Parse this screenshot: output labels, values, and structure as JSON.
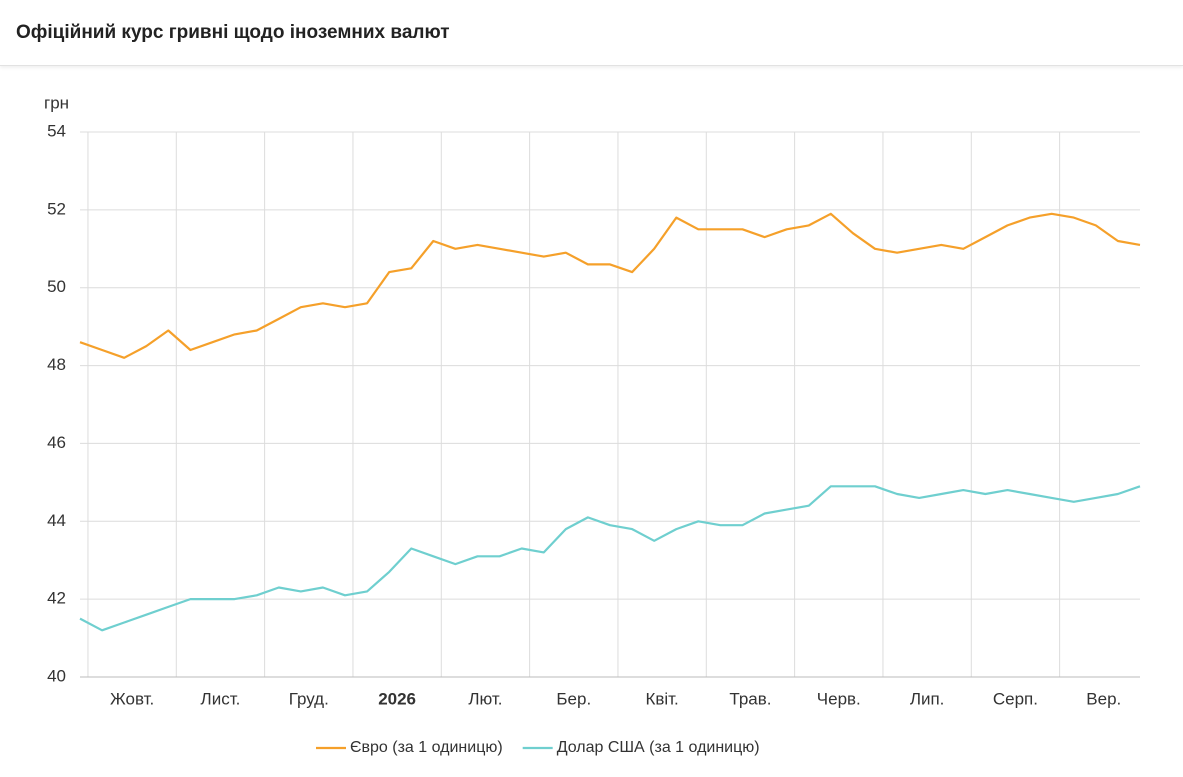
{
  "chart_data": {
    "type": "line",
    "title": "Офіційний курс гривні щодо іноземних валют",
    "y_label": "грн",
    "categories": [
      null,
      null,
      "Жовт.",
      null,
      null,
      null,
      "Лист.",
      null,
      null,
      null,
      "Груд.",
      null,
      null,
      null,
      "2026",
      null,
      null,
      null,
      "Лют.",
      null,
      null,
      null,
      "Бер.",
      null,
      null,
      null,
      "Квіт.",
      null,
      null,
      null,
      "Трав.",
      null,
      null,
      null,
      "Черв.",
      null,
      null,
      null,
      "Лип.",
      null,
      null,
      null,
      "Серп.",
      null,
      null,
      null,
      "Вер.",
      null,
      null
    ],
    "series": [
      {
        "name": "Євро (за 1 одиницю)",
        "color": "#f5a02a",
        "values": [
          48.6,
          48.4,
          48.2,
          48.5,
          48.9,
          48.4,
          48.6,
          48.8,
          48.9,
          49.2,
          49.5,
          49.6,
          49.5,
          49.6,
          50.4,
          50.5,
          51.2,
          51.0,
          51.1,
          51.0,
          50.9,
          50.8,
          50.9,
          50.6,
          50.6,
          50.4,
          51.0,
          51.8,
          51.5,
          51.5,
          51.5,
          51.3,
          51.5,
          51.6,
          51.9,
          51.4,
          51.0,
          50.9,
          51.0,
          51.1,
          51.0,
          51.3,
          51.6,
          51.8,
          51.9,
          51.8,
          51.6,
          51.2,
          51.1
        ]
      },
      {
        "name": "Долар США (за 1 одиницю)",
        "color": "#6fcfcf",
        "values": [
          41.5,
          41.2,
          41.4,
          41.6,
          41.8,
          42.0,
          42.0,
          42.0,
          42.1,
          42.3,
          42.2,
          42.3,
          42.1,
          42.2,
          42.7,
          43.3,
          43.1,
          42.9,
          43.1,
          43.1,
          43.3,
          43.2,
          43.8,
          44.1,
          43.9,
          43.8,
          43.5,
          43.8,
          44.0,
          43.9,
          43.9,
          44.2,
          44.3,
          44.4,
          44.9,
          44.9,
          44.9,
          44.7,
          44.6,
          44.7,
          44.8,
          44.7,
          44.8,
          44.7,
          44.6,
          44.5,
          44.6,
          44.7,
          44.9
        ]
      }
    ],
    "ylim": [
      40,
      54
    ],
    "yticks": [
      40,
      42,
      44,
      46,
      48,
      50,
      52,
      54
    ],
    "grid": true,
    "legend": "bottom"
  }
}
